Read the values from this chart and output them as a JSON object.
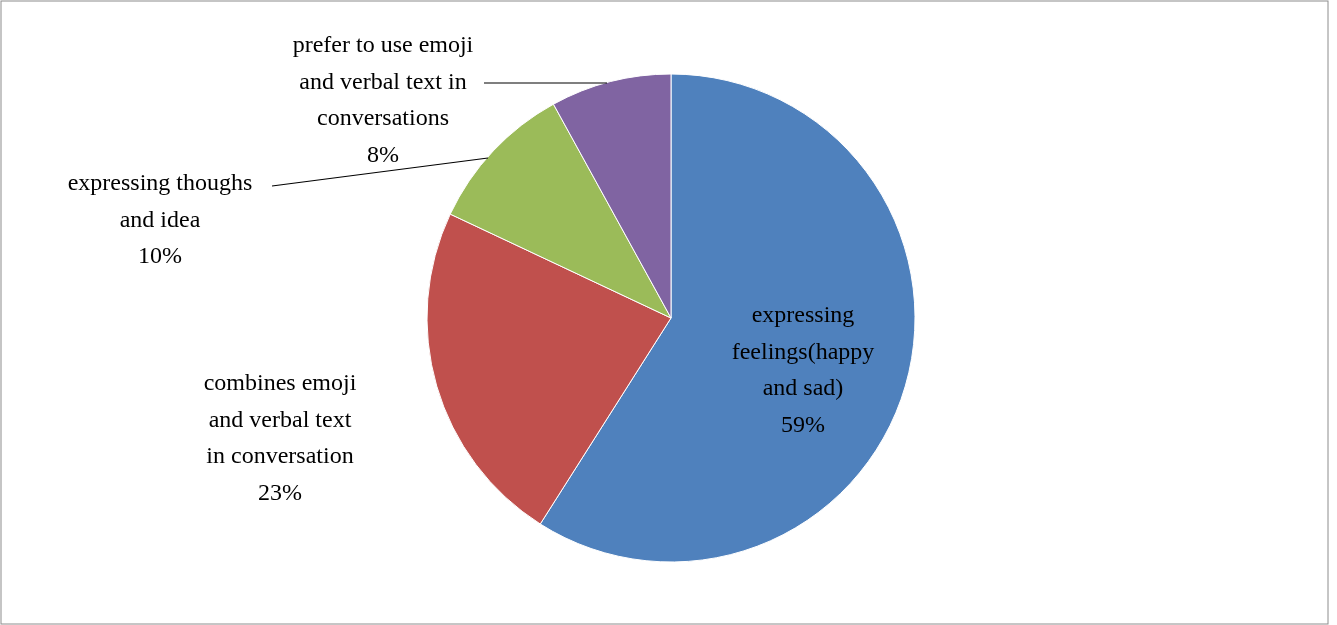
{
  "chart_data": {
    "type": "pie",
    "categories": [
      "expressing feelings(happy and sad)",
      "combines emoji and verbal text in conversation",
      "expressing thoughs and idea",
      "prefer to use emoji and verbal text in conversations"
    ],
    "values": [
      59,
      23,
      10,
      8
    ],
    "colors": [
      "#4f81bd",
      "#c0504d",
      "#9bbb59",
      "#8064a2"
    ],
    "value_labels": [
      "59%",
      "23%",
      "10%",
      "8%"
    ],
    "legend": false
  }
}
